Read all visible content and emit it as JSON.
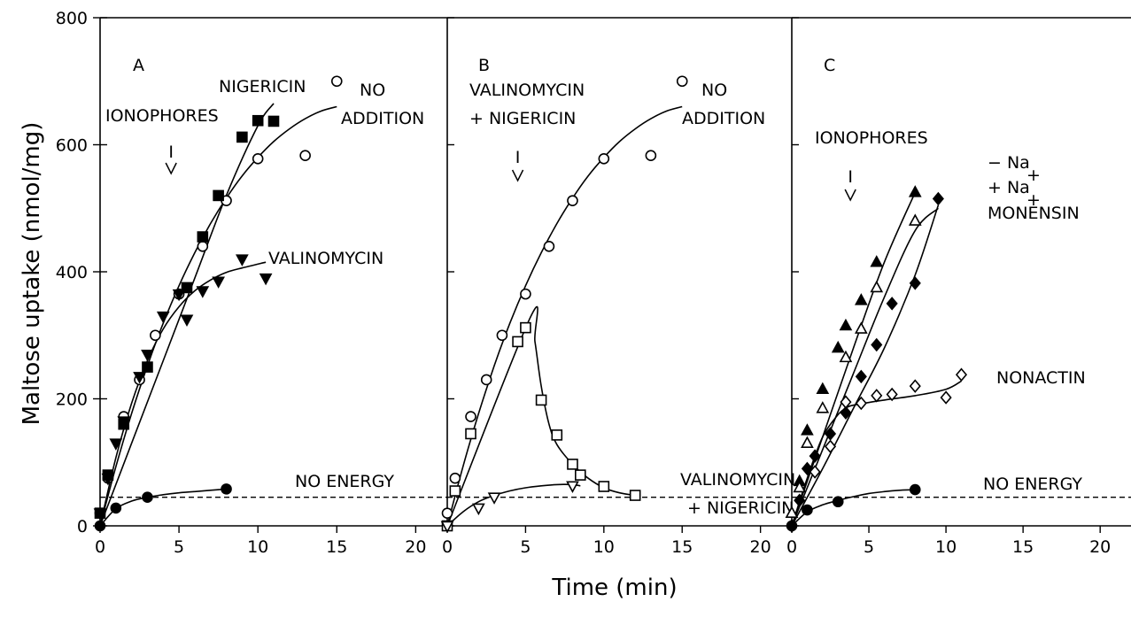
{
  "figure": {
    "ylabel": "Maltose uptake (nmol/mg)",
    "xlabel": "Time (min)"
  },
  "chart_data": [
    {
      "type": "scatter",
      "panel": "A",
      "xlim": [
        0,
        22
      ],
      "ylim": [
        0,
        800
      ],
      "xticks": [
        0,
        5,
        10,
        15,
        20
      ],
      "yticks": [
        0,
        200,
        400,
        600,
        800
      ],
      "ytick_labels": [
        "0",
        "200",
        "400",
        "600",
        "800"
      ],
      "annotations": [
        {
          "key": "ionophores",
          "text": "IONOPHORES"
        },
        {
          "key": "nigericin",
          "text": "NIGERICIN"
        },
        {
          "key": "no_addition_1",
          "text": "NO"
        },
        {
          "key": "no_addition_2",
          "text": "ADDITION"
        },
        {
          "key": "valinomycin",
          "text": "VALINOMYCIN"
        },
        {
          "key": "no_energy",
          "text": "NO ENERGY"
        }
      ],
      "arrows": [
        {
          "x": 4.5,
          "label": "I"
        }
      ],
      "reference_lines": [
        {
          "y": 45,
          "style": "dashed"
        }
      ],
      "series": [
        {
          "marker": "open-circle",
          "x": [
            0,
            0.5,
            1.5,
            2.5,
            3.5,
            5,
            6.5,
            8,
            10,
            13,
            15
          ],
          "y": [
            20,
            75,
            172,
            230,
            300,
            365,
            440,
            512,
            578,
            583,
            700
          ]
        },
        {
          "marker": "filled-square",
          "x": [
            0,
            0.5,
            1.5,
            3,
            5.5,
            6.5,
            7.5,
            9,
            10,
            11
          ],
          "y": [
            20,
            80,
            160,
            250,
            375,
            455,
            520,
            612,
            638,
            637
          ]
        },
        {
          "marker": "filled-triangle-down",
          "x": [
            0,
            0.5,
            1,
            1.5,
            2.5,
            3,
            4,
            5,
            5.5,
            6.5,
            7.5,
            9,
            10.5
          ],
          "y": [
            20,
            75,
            130,
            165,
            235,
            270,
            330,
            365,
            325,
            370,
            385,
            420,
            390
          ]
        },
        {
          "marker": "filled-circle",
          "x": [
            0,
            1,
            3,
            8
          ],
          "y": [
            0,
            28,
            45,
            58
          ]
        }
      ],
      "curves": [
        {
          "x": [
            0,
            1,
            2,
            3,
            4,
            5,
            6,
            7,
            8,
            9,
            10,
            11,
            12,
            13,
            14,
            15
          ],
          "y": [
            0,
            93,
            177,
            252,
            319,
            378,
            430,
            476,
            516,
            551,
            580,
            605,
            625,
            641,
            653,
            660
          ]
        },
        {
          "x": [
            0,
            2,
            4,
            6,
            8,
            10,
            11
          ],
          "y": [
            0,
            130,
            260,
            390,
            520,
            630,
            665
          ]
        },
        {
          "x": [
            0,
            1,
            2,
            3,
            4,
            5,
            6,
            7,
            8,
            9,
            10.5
          ],
          "y": [
            0,
            107,
            193,
            260,
            310,
            345,
            370,
            387,
            399,
            406,
            415
          ]
        },
        {
          "x": [
            0,
            1,
            2,
            3,
            4,
            5,
            6,
            7,
            8
          ],
          "y": [
            0,
            27,
            39,
            45,
            49,
            52,
            54,
            56,
            58
          ]
        }
      ]
    },
    {
      "type": "scatter",
      "panel": "B",
      "xlim": [
        0,
        22
      ],
      "ylim": [
        0,
        800
      ],
      "xticks": [
        0,
        5,
        10,
        15,
        20
      ],
      "yticks": [
        0,
        200,
        400,
        600,
        800
      ],
      "annotations": [
        {
          "key": "val_nig_1",
          "text": "VALINOMYCIN"
        },
        {
          "key": "val_nig_2",
          "text": "+ NIGERICIN"
        },
        {
          "key": "no_addition_1",
          "text": "NO"
        },
        {
          "key": "no_addition_2",
          "text": "ADDITION"
        },
        {
          "key": "val_nig_bottom_1",
          "text": "VALINOMYCIN"
        },
        {
          "key": "val_nig_bottom_2",
          "text": "+ NIGERICIN"
        }
      ],
      "arrows": [
        {
          "x": 4.5,
          "label": "I"
        }
      ],
      "reference_lines": [
        {
          "y": 45,
          "style": "dashed"
        }
      ],
      "series": [
        {
          "marker": "open-circle",
          "x": [
            0,
            0.5,
            1.5,
            2.5,
            3.5,
            5,
            6.5,
            8,
            10,
            13,
            15
          ],
          "y": [
            20,
            75,
            172,
            230,
            300,
            365,
            440,
            512,
            578,
            583,
            700
          ]
        },
        {
          "marker": "open-square",
          "x": [
            0,
            0.5,
            1.5,
            4.5,
            5,
            6,
            7,
            8,
            8.5,
            10,
            12
          ],
          "y": [
            0,
            55,
            145,
            290,
            312,
            198,
            143,
            97,
            80,
            62,
            48
          ]
        },
        {
          "marker": "open-triangle-down",
          "x": [
            0,
            2,
            3,
            8
          ],
          "y": [
            0,
            28,
            45,
            63
          ]
        }
      ],
      "curves": [
        {
          "x": [
            0,
            1,
            2,
            3,
            4,
            5,
            6,
            7,
            8,
            9,
            10,
            11,
            12,
            13,
            14,
            15
          ],
          "y": [
            0,
            93,
            177,
            252,
            319,
            378,
            430,
            476,
            516,
            551,
            580,
            605,
            625,
            641,
            653,
            660
          ]
        },
        {
          "x": [
            0,
            5.3,
            5.6,
            6,
            6.5,
            7,
            8,
            9,
            10,
            11,
            12
          ],
          "y": [
            0,
            328,
            290,
            220,
            160,
            128,
            97,
            75,
            60,
            52,
            48
          ]
        },
        {
          "x": [
            0,
            1,
            2,
            3,
            4,
            5,
            6,
            7,
            8,
            8.5
          ],
          "y": [
            0,
            22,
            38,
            48,
            55,
            60,
            63,
            65,
            65,
            63
          ]
        }
      ]
    },
    {
      "type": "scatter",
      "panel": "C",
      "xlim": [
        0,
        22
      ],
      "ylim": [
        0,
        800
      ],
      "xticks": [
        0,
        5,
        10,
        15,
        20
      ],
      "yticks": [
        0,
        200,
        400,
        600,
        800
      ],
      "annotations": [
        {
          "key": "ionophores",
          "text": "IONOPHORES"
        },
        {
          "key": "minus_na",
          "text": "− Na"
        },
        {
          "key": "plus_na",
          "text": "+ Na"
        },
        {
          "key": "monensin",
          "text": "MONENSIN"
        },
        {
          "key": "nonactin",
          "text": "NONACTIN"
        },
        {
          "key": "no_energy",
          "text": "NO ENERGY"
        },
        {
          "key": "superscript_plus",
          "text": "+"
        }
      ],
      "arrows": [
        {
          "x": 3.8,
          "label": "I"
        }
      ],
      "reference_lines": [
        {
          "y": 45,
          "style": "dashed"
        }
      ],
      "series": [
        {
          "marker": "filled-triangle-up",
          "x": [
            0,
            0.5,
            1,
            2,
            3,
            3.5,
            4.5,
            5.5,
            8
          ],
          "y": [
            20,
            70,
            150,
            215,
            280,
            315,
            355,
            415,
            525
          ]
        },
        {
          "marker": "open-triangle-up",
          "x": [
            0,
            0.5,
            1,
            2,
            3.5,
            4.5,
            5.5,
            8
          ],
          "y": [
            20,
            60,
            130,
            185,
            265,
            310,
            375,
            480
          ]
        },
        {
          "marker": "filled-diamond",
          "x": [
            0,
            0.5,
            1,
            1.5,
            2.5,
            3.5,
            4.5,
            5.5,
            6.5,
            8,
            9.5
          ],
          "y": [
            0,
            40,
            90,
            110,
            145,
            178,
            235,
            285,
            350,
            382,
            515
          ]
        },
        {
          "marker": "open-diamond",
          "x": [
            0,
            1.5,
            2.5,
            3.5,
            4.5,
            5.5,
            6.5,
            8,
            10,
            11
          ],
          "y": [
            0,
            85,
            125,
            195,
            193,
            205,
            207,
            220,
            202,
            238
          ]
        },
        {
          "marker": "filled-circle",
          "x": [
            0,
            1,
            3,
            8
          ],
          "y": [
            0,
            25,
            38,
            57
          ]
        }
      ],
      "curves": [
        {
          "x": [
            0,
            2,
            4,
            6,
            8
          ],
          "y": [
            0,
            140,
            280,
            415,
            525
          ]
        },
        {
          "x": [
            0,
            2,
            4,
            6,
            8,
            9.5
          ],
          "y": [
            0,
            120,
            240,
            360,
            465,
            500
          ]
        },
        {
          "x": [
            0,
            2,
            4,
            6,
            8,
            9.5
          ],
          "y": [
            0,
            90,
            185,
            280,
            395,
            505
          ]
        },
        {
          "x": [
            0,
            1,
            2,
            3,
            3.5,
            4,
            6,
            8,
            10,
            11
          ],
          "y": [
            0,
            75,
            140,
            175,
            185,
            190,
            198,
            205,
            215,
            228
          ]
        },
        {
          "x": [
            0,
            1,
            2,
            3,
            4,
            5,
            6,
            7,
            8
          ],
          "y": [
            0,
            22,
            33,
            40,
            46,
            51,
            54,
            56,
            57
          ]
        }
      ]
    }
  ]
}
